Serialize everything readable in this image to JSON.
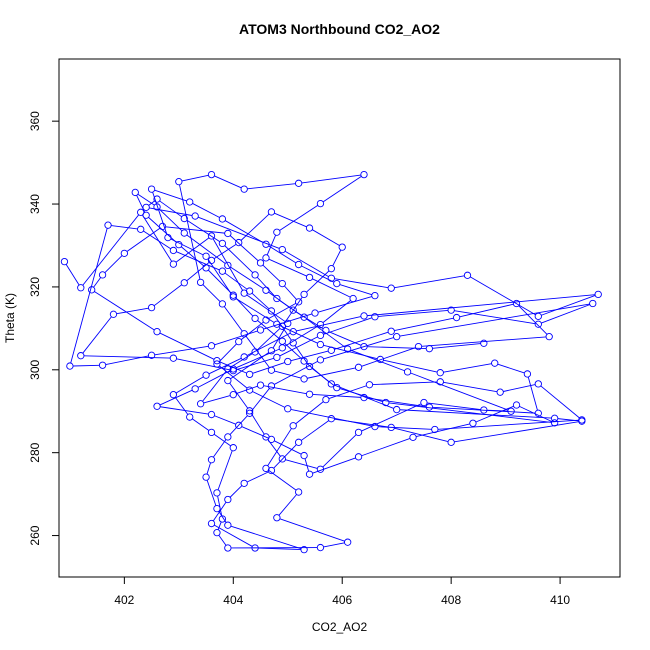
{
  "chart_data": {
    "type": "line",
    "title": "ATOM3 Northbound CO2_AO2",
    "xlabel": "CO2_AO2",
    "ylabel": "Theta (K)",
    "xlim": [
      400.8,
      411.1
    ],
    "ylim": [
      250,
      375
    ],
    "xticks": [
      402,
      404,
      406,
      408,
      410
    ],
    "yticks": [
      260,
      280,
      300,
      320,
      340,
      360
    ],
    "grid": false,
    "legend": "none",
    "marker": "open-circle",
    "color": "#0000ff",
    "series": [
      {
        "points": [
          [
            400.9,
            326.1
          ],
          [
            401.2,
            319.8
          ],
          [
            402.3,
            338.0
          ],
          [
            402.9,
            325.5
          ],
          [
            403.6,
            332.3
          ],
          [
            404.2,
            318.5
          ],
          [
            405.0,
            311.2
          ],
          [
            404.7,
            304.6
          ],
          [
            403.9,
            297.4
          ],
          [
            404.3,
            290.1
          ],
          [
            404.6,
            283.8
          ],
          [
            404.9,
            278.5
          ],
          [
            405.6,
            276.0
          ],
          [
            406.3,
            284.9
          ],
          [
            407.5,
            292.1
          ],
          [
            408.6,
            290.3
          ],
          [
            409.1,
            290.0
          ],
          [
            407.2,
            299.5
          ],
          [
            406.1,
            305.0
          ],
          [
            405.3,
            312.7
          ],
          [
            404.8,
            317.2
          ],
          [
            404.4,
            322.9
          ],
          [
            403.8,
            330.5
          ],
          [
            403.1,
            336.5
          ],
          [
            402.6,
            341.2
          ],
          [
            402.4,
            339.2
          ],
          [
            403.3,
            337.1
          ],
          [
            404.9,
            329.0
          ],
          [
            405.8,
            322.1
          ],
          [
            406.9,
            319.7
          ],
          [
            408.3,
            322.8
          ],
          [
            409.6,
            312.9
          ],
          [
            410.7,
            318.2
          ],
          [
            406.4,
            313.0
          ],
          [
            405.1,
            309.2
          ],
          [
            404.2,
            303.1
          ],
          [
            403.5,
            298.7
          ],
          [
            402.9,
            294.0
          ],
          [
            403.2,
            288.6
          ],
          [
            403.6,
            284.9
          ],
          [
            404.0,
            281.2
          ],
          [
            403.7,
            270.3
          ],
          [
            403.8,
            264.0
          ],
          [
            403.7,
            260.7
          ],
          [
            403.9,
            257.0
          ],
          [
            405.6,
            257.1
          ],
          [
            406.1,
            258.4
          ],
          [
            404.8,
            264.3
          ],
          [
            405.2,
            270.5
          ],
          [
            404.6,
            276.2
          ],
          [
            405.1,
            286.5
          ],
          [
            405.7,
            292.8
          ],
          [
            406.5,
            296.4
          ],
          [
            407.8,
            297.1
          ],
          [
            408.9,
            294.6
          ],
          [
            409.6,
            296.6
          ],
          [
            410.4,
            287.9
          ],
          [
            407.7,
            285.6
          ],
          [
            406.6,
            286.3
          ],
          [
            405.0,
            290.6
          ],
          [
            404.3,
            295.1
          ],
          [
            403.7,
            301.4
          ],
          [
            404.1,
            306.8
          ],
          [
            404.6,
            312.0
          ],
          [
            405.2,
            316.4
          ],
          [
            404.9,
            320.8
          ],
          [
            404.5,
            325.8
          ],
          [
            403.9,
            332.9
          ],
          [
            402.7,
            334.6
          ],
          [
            402.0,
            328.1
          ],
          [
            401.6,
            322.9
          ],
          [
            401.4,
            319.3
          ],
          [
            402.6,
            309.2
          ],
          [
            403.7,
            302.2
          ],
          [
            404.3,
            298.9
          ],
          [
            405.0,
            302.0
          ],
          [
            405.8,
            304.7
          ],
          [
            406.9,
            309.3
          ],
          [
            408.1,
            312.6
          ],
          [
            409.2,
            316.0
          ],
          [
            409.8,
            308.0
          ],
          [
            407.4,
            305.6
          ],
          [
            406.3,
            300.6
          ],
          [
            405.3,
            297.8
          ],
          [
            404.7,
            299.9
          ],
          [
            404.2,
            308.7
          ],
          [
            403.8,
            315.9
          ],
          [
            403.4,
            321.1
          ],
          [
            403.0,
            345.4
          ],
          [
            403.6,
            347.1
          ],
          [
            404.2,
            343.6
          ],
          [
            405.2,
            345.0
          ],
          [
            406.4,
            347.1
          ],
          [
            405.6,
            340.1
          ],
          [
            404.8,
            333.2
          ],
          [
            404.6,
            327.0
          ],
          [
            405.4,
            322.3
          ],
          [
            406.2,
            317.2
          ],
          [
            405.6,
            310.9
          ],
          [
            404.9,
            305.3
          ],
          [
            404.0,
            300.2
          ],
          [
            403.3,
            295.4
          ],
          [
            402.6,
            291.2
          ],
          [
            403.6,
            289.2
          ],
          [
            404.1,
            286.6
          ],
          [
            404.7,
            283.2
          ],
          [
            405.3,
            279.3
          ],
          [
            405.4,
            274.8
          ],
          [
            406.3,
            279.0
          ],
          [
            407.3,
            283.7
          ],
          [
            408.4,
            287.1
          ],
          [
            409.2,
            291.5
          ],
          [
            409.9,
            287.2
          ],
          [
            406.8,
            292.1
          ],
          [
            405.9,
            295.7
          ],
          [
            405.4,
            300.8
          ],
          [
            405.1,
            306.5
          ],
          [
            404.7,
            314.2
          ],
          [
            404.3,
            319.0
          ],
          [
            403.8,
            323.8
          ],
          [
            402.9,
            328.8
          ],
          [
            402.3,
            333.9
          ],
          [
            401.7,
            334.9
          ],
          [
            401.0,
            300.9
          ],
          [
            401.6,
            301.1
          ],
          [
            402.5,
            303.5
          ],
          [
            403.6,
            305.8
          ],
          [
            404.5,
            309.6
          ],
          [
            405.5,
            313.7
          ],
          [
            406.6,
            317.9
          ],
          [
            405.9,
            320.8
          ],
          [
            405.2,
            325.4
          ],
          [
            404.6,
            330.3
          ],
          [
            403.8,
            336.4
          ],
          [
            403.2,
            340.5
          ],
          [
            402.5,
            343.6
          ],
          [
            402.8,
            331.9
          ],
          [
            403.5,
            327.4
          ],
          [
            404.0,
            317.6
          ],
          [
            404.8,
            311.0
          ],
          [
            405.6,
            306.1
          ],
          [
            406.7,
            302.5
          ],
          [
            407.8,
            299.3
          ],
          [
            408.8,
            301.6
          ],
          [
            409.4,
            299.0
          ],
          [
            409.6,
            289.5
          ],
          [
            407.6,
            291.0
          ],
          [
            406.4,
            293.3
          ],
          [
            405.4,
            294.1
          ],
          [
            404.5,
            296.3
          ],
          [
            404.0,
            294.0
          ],
          [
            403.4,
            291.8
          ],
          [
            403.9,
            300.2
          ],
          [
            404.4,
            304.3
          ],
          [
            404.9,
            310.5
          ],
          [
            405.3,
            318.2
          ],
          [
            405.8,
            324.4
          ],
          [
            406.0,
            329.6
          ],
          [
            405.4,
            334.2
          ],
          [
            404.7,
            338.1
          ],
          [
            404.1,
            330.7
          ],
          [
            403.6,
            326.4
          ],
          [
            403.1,
            321.0
          ],
          [
            402.5,
            315.0
          ],
          [
            401.8,
            313.4
          ],
          [
            401.2,
            303.4
          ],
          [
            402.9,
            302.8
          ],
          [
            404.0,
            299.8
          ],
          [
            404.8,
            303.0
          ],
          [
            405.6,
            308.3
          ],
          [
            406.6,
            312.8
          ],
          [
            408.0,
            314.4
          ],
          [
            409.6,
            311.0
          ],
          [
            410.6,
            316.0
          ],
          [
            407.0,
            308.0
          ],
          [
            405.6,
            302.4
          ],
          [
            404.7,
            296.1
          ],
          [
            404.3,
            289.5
          ],
          [
            403.9,
            283.8
          ],
          [
            403.6,
            278.3
          ],
          [
            403.5,
            274.1
          ],
          [
            403.7,
            266.5
          ],
          [
            403.9,
            262.5
          ],
          [
            405.3,
            256.6
          ],
          [
            404.4,
            257.0
          ],
          [
            403.6,
            262.9
          ],
          [
            403.9,
            268.7
          ],
          [
            404.2,
            272.6
          ],
          [
            404.7,
            275.7
          ],
          [
            405.2,
            282.5
          ],
          [
            405.8,
            288.2
          ],
          [
            406.9,
            286.1
          ],
          [
            408.0,
            282.5
          ],
          [
            410.4,
            287.6
          ],
          [
            409.9,
            288.3
          ],
          [
            407.0,
            290.4
          ],
          [
            405.8,
            296.6
          ],
          [
            405.3,
            302.1
          ],
          [
            404.9,
            306.9
          ],
          [
            404.4,
            312.4
          ],
          [
            404.0,
            318.0
          ],
          [
            403.5,
            324.6
          ],
          [
            403.0,
            330.2
          ],
          [
            402.4,
            337.3
          ],
          [
            402.2,
            342.8
          ],
          [
            402.6,
            339.3
          ],
          [
            403.1,
            333.0
          ],
          [
            403.9,
            325.2
          ],
          [
            404.6,
            319.2
          ],
          [
            405.1,
            314.4
          ],
          [
            405.7,
            309.5
          ],
          [
            406.4,
            305.6
          ],
          [
            407.6,
            305.1
          ],
          [
            408.6,
            306.4
          ]
        ]
      }
    ]
  }
}
